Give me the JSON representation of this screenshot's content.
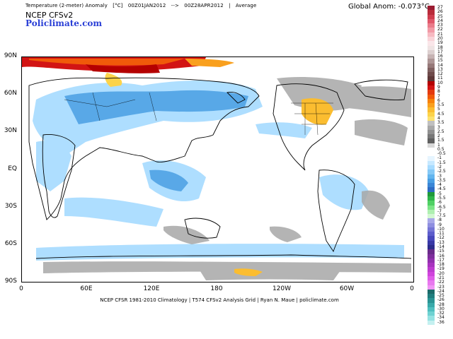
{
  "header": {
    "variable": "Temperature (2-meter) Anomaly",
    "units": "[°C]",
    "period_start": "00Z01JAN2012",
    "arrow": "-->",
    "period_end": "00Z28APR2012",
    "separator": "|",
    "stat": "Average",
    "model": "NCEP  CFSv2",
    "site": "Policlimate.com",
    "global_anom": "Global Anom: -0.073°C"
  },
  "map": {
    "lat_labels": [
      "90N",
      "60N",
      "30N",
      "EQ",
      "30S",
      "60S",
      "90S"
    ],
    "lon_labels": [
      "0",
      "60E",
      "120E",
      "180",
      "120W",
      "60W",
      "0"
    ]
  },
  "footer": {
    "text": "NCEP CFSR 1981-2010 Climatology | T574 CFSv2 Analysis Grid | Ryan N. Maue | policlimate.com"
  },
  "colorbar": {
    "ticks": [
      "27",
      "26",
      "25",
      "24",
      "23",
      "22",
      "21",
      "20",
      "19",
      "18",
      "17",
      "16",
      "15",
      "14",
      "13",
      "12",
      "11",
      "10",
      "9",
      "8",
      "7",
      "6",
      "5.5",
      "5",
      "4.5",
      "4",
      "3.5",
      "3",
      "2.5",
      "2",
      "1.5",
      "1",
      "0.5",
      "-0.5",
      "-1",
      "-1.5",
      "-2",
      "-2.5",
      "-3",
      "-3.5",
      "-4",
      "-4.5",
      "-5",
      "-5.5",
      "-6",
      "-6.5",
      "-7",
      "-7.5",
      "-8",
      "-9",
      "-10",
      "-11",
      "-12",
      "-13",
      "-14",
      "-15",
      "-16",
      "-17",
      "-18",
      "-19",
      "-20",
      "-21",
      "-22",
      "-23",
      "-24",
      "-25",
      "-26",
      "-28",
      "-30",
      "-32",
      "-34",
      "-36"
    ],
    "colors": [
      "#9b1c31",
      "#b92b3a",
      "#cf3d4e",
      "#e0576a",
      "#ea7b8a",
      "#f29aa6",
      "#f6b9c1",
      "#f9d3d8",
      "#fae6e9",
      "#efe3e3",
      "#dccfcf",
      "#c6b3b3",
      "#ad9595",
      "#957878",
      "#7f5f5f",
      "#6e4a4a",
      "#5e3838",
      "#b40000",
      "#d21414",
      "#e43a10",
      "#f05a0a",
      "#f7820a",
      "#f9a01e",
      "#fbbd30",
      "#fcd34a",
      "#fde26e",
      "#c0c0c0",
      "#a8a8a8",
      "#909090",
      "#787878",
      "#606060",
      "#d8d8d8",
      "#ffffff",
      "#ffffff",
      "#e6f5ff",
      "#c6e8ff",
      "#a6dbff",
      "#85c9f6",
      "#63b5ee",
      "#4a9fe3",
      "#3a86d6",
      "#2e6cc4",
      "#1f9a3a",
      "#2fb64a",
      "#4fd064",
      "#7be486",
      "#aef0b0",
      "#d2f7d2",
      "#a8a8e8",
      "#8f8fe0",
      "#7676d6",
      "#5d5dcc",
      "#4848bc",
      "#3838a6",
      "#2c2c8c",
      "#6a2a8a",
      "#7e2e9c",
      "#9230ae",
      "#a834bf",
      "#bd3ccf",
      "#d044dd",
      "#de5ce8",
      "#e878ef",
      "#f094f5",
      "#1c6a6a",
      "#207e7e",
      "#2a9494",
      "#38aaaa",
      "#4fbfbf",
      "#6fd2d2",
      "#95e2e2",
      "#c4f0f0"
    ]
  }
}
